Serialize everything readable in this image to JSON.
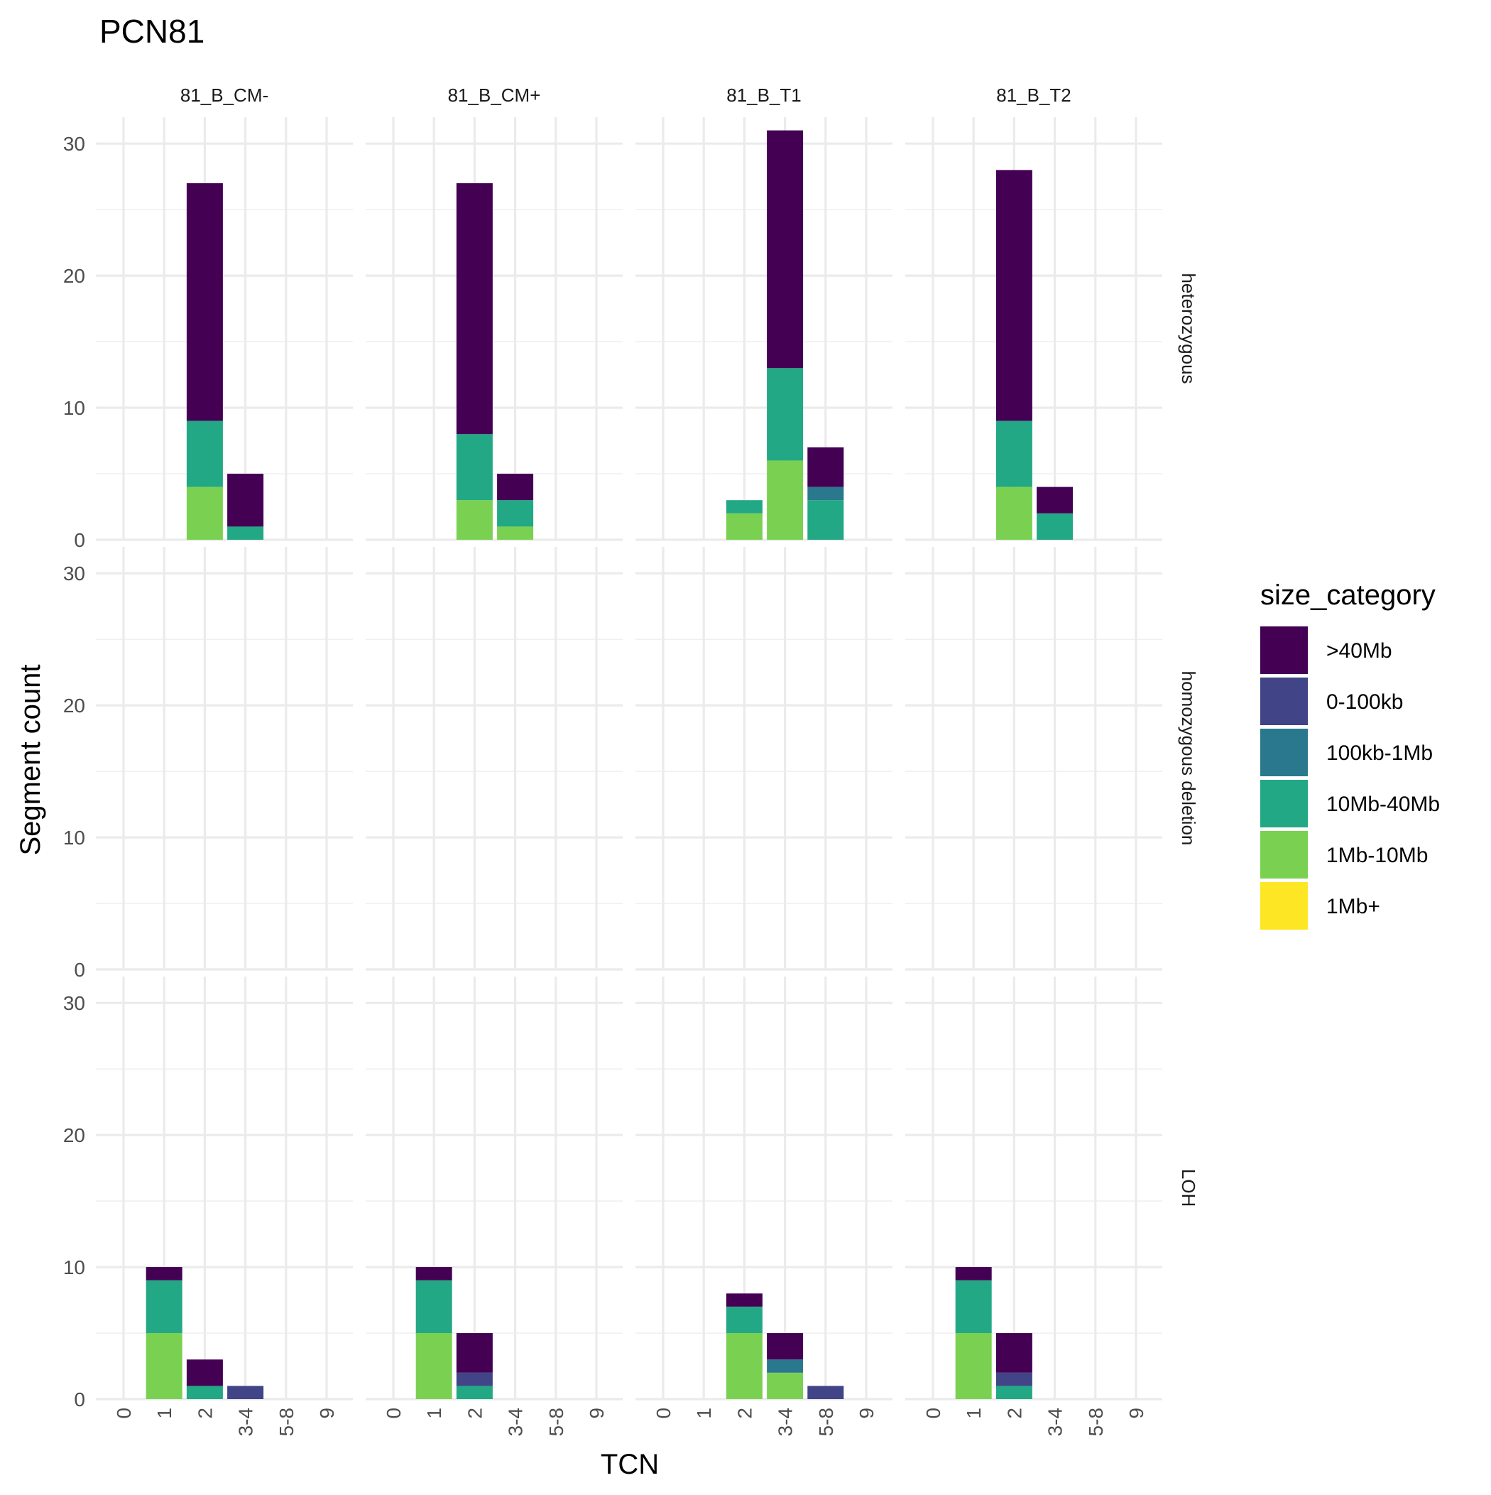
{
  "chart_data": {
    "type": "bar",
    "stacked": true,
    "title": "PCN81",
    "xlabel": "TCN",
    "ylabel": "Segment count",
    "ylim": [
      0,
      32
    ],
    "yticks": [
      0,
      10,
      20,
      30
    ],
    "categories": [
      "0",
      "1",
      "2",
      "3-4",
      "5-8",
      "9"
    ],
    "columns": [
      "81_B_CM-",
      "81_B_CM+",
      "81_B_T1",
      "81_B_T2"
    ],
    "rows": [
      "heterozygous",
      "homozygous deletion",
      "LOH"
    ],
    "legend": {
      "title": "size_category",
      "position": "right",
      "entries": [
        {
          "label": ">40Mb",
          "color": "#440154"
        },
        {
          "label": "0-100kb",
          "color": "#414487"
        },
        {
          "label": "100kb-1Mb",
          "color": "#2A788E"
        },
        {
          "label": "10Mb-40Mb",
          "color": "#22A884"
        },
        {
          "label": "1Mb-10Mb",
          "color": "#7AD151"
        },
        {
          "label": "1Mb+",
          "color": "#FDE725"
        }
      ]
    },
    "stack_order_bottom_to_top": [
      "1Mb+",
      "1Mb-10Mb",
      "10Mb-40Mb",
      "100kb-1Mb",
      "0-100kb",
      ">40Mb"
    ],
    "grid": true,
    "panels": [
      {
        "row": "heterozygous",
        "column": "81_B_CM-",
        "bars": [
          {
            "x": "2",
            "segments": {
              "1Mb-10Mb": 4,
              "10Mb-40Mb": 5,
              ">40Mb": 18
            }
          },
          {
            "x": "3-4",
            "segments": {
              "10Mb-40Mb": 1,
              ">40Mb": 4
            }
          }
        ]
      },
      {
        "row": "heterozygous",
        "column": "81_B_CM+",
        "bars": [
          {
            "x": "2",
            "segments": {
              "1Mb-10Mb": 3,
              "10Mb-40Mb": 5,
              ">40Mb": 19
            }
          },
          {
            "x": "3-4",
            "segments": {
              "1Mb-10Mb": 1,
              "10Mb-40Mb": 2,
              ">40Mb": 2
            }
          }
        ]
      },
      {
        "row": "heterozygous",
        "column": "81_B_T1",
        "bars": [
          {
            "x": "2",
            "segments": {
              "1Mb-10Mb": 2,
              "10Mb-40Mb": 1
            }
          },
          {
            "x": "3-4",
            "segments": {
              "1Mb-10Mb": 6,
              "10Mb-40Mb": 7,
              ">40Mb": 18
            }
          },
          {
            "x": "5-8",
            "segments": {
              "10Mb-40Mb": 3,
              "100kb-1Mb": 1,
              ">40Mb": 3
            }
          }
        ]
      },
      {
        "row": "heterozygous",
        "column": "81_B_T2",
        "bars": [
          {
            "x": "2",
            "segments": {
              "1Mb-10Mb": 4,
              "10Mb-40Mb": 5,
              ">40Mb": 19
            }
          },
          {
            "x": "3-4",
            "segments": {
              "10Mb-40Mb": 2,
              ">40Mb": 2
            }
          }
        ]
      },
      {
        "row": "homozygous deletion",
        "column": "81_B_CM-",
        "bars": []
      },
      {
        "row": "homozygous deletion",
        "column": "81_B_CM+",
        "bars": []
      },
      {
        "row": "homozygous deletion",
        "column": "81_B_T1",
        "bars": []
      },
      {
        "row": "homozygous deletion",
        "column": "81_B_T2",
        "bars": []
      },
      {
        "row": "LOH",
        "column": "81_B_CM-",
        "bars": [
          {
            "x": "1",
            "segments": {
              "1Mb-10Mb": 5,
              "10Mb-40Mb": 4,
              ">40Mb": 1
            }
          },
          {
            "x": "2",
            "segments": {
              "10Mb-40Mb": 1,
              ">40Mb": 2
            }
          },
          {
            "x": "3-4",
            "segments": {
              "0-100kb": 1
            }
          }
        ]
      },
      {
        "row": "LOH",
        "column": "81_B_CM+",
        "bars": [
          {
            "x": "1",
            "segments": {
              "1Mb-10Mb": 5,
              "10Mb-40Mb": 4,
              ">40Mb": 1
            }
          },
          {
            "x": "2",
            "segments": {
              "10Mb-40Mb": 1,
              "0-100kb": 1,
              ">40Mb": 3
            }
          }
        ]
      },
      {
        "row": "LOH",
        "column": "81_B_T1",
        "bars": [
          {
            "x": "2",
            "segments": {
              "1Mb-10Mb": 5,
              "10Mb-40Mb": 2,
              ">40Mb": 1
            }
          },
          {
            "x": "3-4",
            "segments": {
              "1Mb-10Mb": 2,
              "100kb-1Mb": 1,
              ">40Mb": 2
            }
          },
          {
            "x": "5-8",
            "segments": {
              "0-100kb": 1
            }
          }
        ]
      },
      {
        "row": "LOH",
        "column": "81_B_T2",
        "bars": [
          {
            "x": "1",
            "segments": {
              "1Mb-10Mb": 5,
              "10Mb-40Mb": 4,
              ">40Mb": 1
            }
          },
          {
            "x": "2",
            "segments": {
              "10Mb-40Mb": 1,
              "0-100kb": 1,
              ">40Mb": 3
            }
          }
        ]
      }
    ]
  }
}
